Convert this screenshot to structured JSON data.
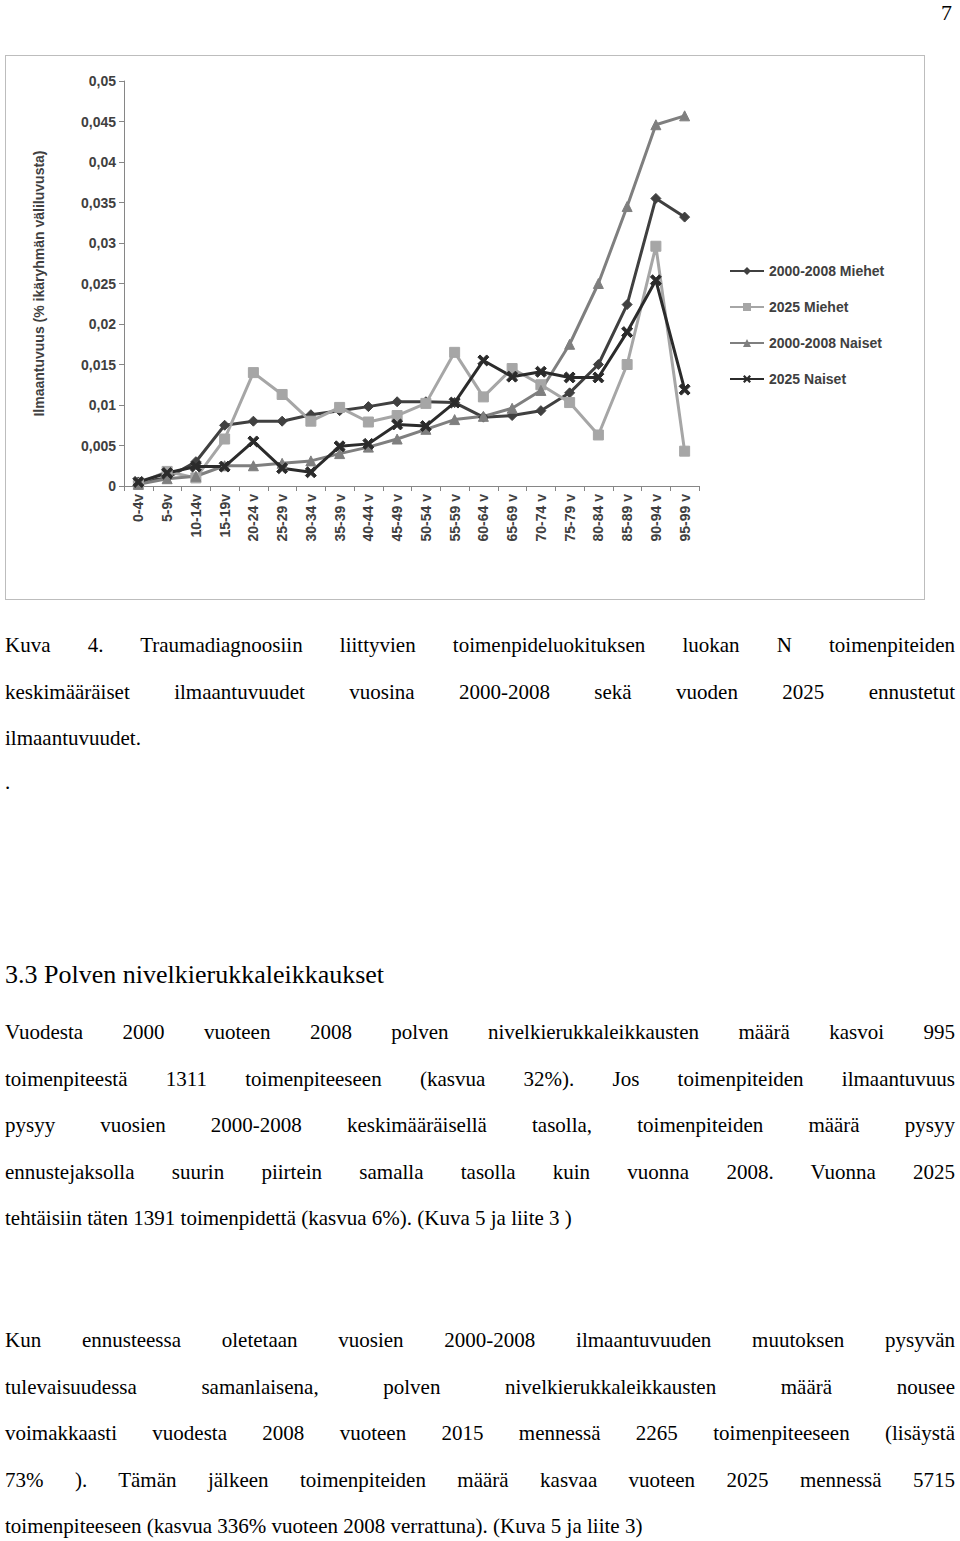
{
  "page_number": "7",
  "chart_data": {
    "type": "line",
    "y_label": "Ilmaantuvuus (% ikäryhmän väliluvusta)",
    "categories": [
      "0-4v",
      "5-9v",
      "10-14v",
      "15-19v",
      "20-24 v",
      "25-29 v",
      "30-34 v",
      "35-39 v",
      "40-44 v",
      "45-49 v",
      "50-54 v",
      "55-59 v",
      "60-64 v",
      "65-69 v",
      "70-74 v",
      "75-79 v",
      "80-84 v",
      "85-89 v",
      "90-94 v",
      "95-99 v"
    ],
    "series": [
      {
        "name": "2000-2008 Miehet",
        "color": "#404040",
        "marker": "diamond",
        "values": [
          0.0005,
          0.001,
          0.003,
          0.0075,
          0.008,
          0.008,
          0.0088,
          0.0093,
          0.0098,
          0.0104,
          0.0104,
          0.0103,
          0.0085,
          0.0087,
          0.0093,
          0.0115,
          0.015,
          0.0224,
          0.0355,
          0.0332
        ]
      },
      {
        "name": "2025 Miehet",
        "color": "#a6a6a6",
        "marker": "square",
        "values": [
          0.0003,
          0.0018,
          0.001,
          0.0058,
          0.014,
          0.0113,
          0.008,
          0.0097,
          0.0079,
          0.0087,
          0.0102,
          0.0165,
          0.011,
          0.0145,
          0.0125,
          0.0103,
          0.0063,
          0.015,
          0.0296,
          0.0043
        ]
      },
      {
        "name": "2000-2008 Naiset",
        "color": "#7f7f7f",
        "marker": "triangle",
        "values": [
          0.0002,
          0.0009,
          0.0012,
          0.0025,
          0.0025,
          0.0028,
          0.0031,
          0.004,
          0.0048,
          0.0058,
          0.007,
          0.0082,
          0.0086,
          0.0096,
          0.0118,
          0.0175,
          0.025,
          0.0345,
          0.0446,
          0.0457
        ]
      },
      {
        "name": "2025 Naiset",
        "color": "#2b2b2b",
        "marker": "x",
        "values": [
          0.0005,
          0.0016,
          0.0024,
          0.0024,
          0.0055,
          0.0022,
          0.0017,
          0.0049,
          0.0052,
          0.0076,
          0.0074,
          0.0103,
          0.0155,
          0.0135,
          0.0141,
          0.0134,
          0.0134,
          0.019,
          0.0254,
          0.0119
        ]
      }
    ],
    "ylim": [
      0,
      0.05
    ],
    "yticks": [
      0,
      {
        "value": 0.005,
        "label": "0,005"
      },
      {
        "value": 0.01,
        "label": "0,01"
      },
      {
        "value": 0.015,
        "label": "0,015"
      },
      {
        "value": 0.02,
        "label": "0,02"
      },
      {
        "value": 0.025,
        "label": "0,025"
      },
      {
        "value": 0.03,
        "label": "0,03"
      },
      {
        "value": 0.035,
        "label": "0,035"
      },
      {
        "value": 0.04,
        "label": "0,04"
      },
      {
        "value": 0.045,
        "label": "0,045"
      },
      {
        "value": 0.05,
        "label": "0,05"
      }
    ],
    "grid": false,
    "legend": "right"
  },
  "caption_lines": [
    "Kuva 4. Traumadiagnoosiin liittyvien toimenpideluokituksen luokan N toimenpiteiden",
    "keskimääräiset ilmaantuvuudet vuosina 2000-2008 sekä vuoden 2025 ennustetut",
    "ilmaantuvuudet."
  ],
  "separator": ".",
  "heading": "3.3 Polven nivelkierukkaleikkaukset",
  "paragraphs": [
    [
      "Vuodesta 2000 vuoteen 2008 polven nivelkierukkaleikkausten määrä kasvoi 995",
      "toimenpiteestä 1311 toimenpiteeseen (kasvua 32%). Jos toimenpiteiden ilmaantuvuus",
      "pysyy vuosien 2000-2008 keskimääräisellä tasolla, toimenpiteiden määrä pysyy",
      "ennustejaksolla suurin piirtein samalla tasolla kuin vuonna 2008. Vuonna 2025",
      "tehtäisiin täten 1391 toimenpidettä (kasvua 6%). (Kuva 5 ja liite 3 )"
    ],
    [
      "Kun ennusteessa oletetaan vuosien 2000-2008 ilmaantuvuuden muutoksen pysyvän",
      "tulevaisuudessa samanlaisena, polven nivelkierukkaleikkausten määrä nousee",
      "voimakkaasti vuodesta 2008 vuoteen 2015 mennessä 2265 toimenpiteeseen (lisäystä",
      "73% ). Tämän jälkeen toimenpiteiden määrä kasvaa vuoteen 2025 mennessä 5715",
      "toimenpiteeseen (kasvua 336% vuoteen 2008 verrattuna). (Kuva 5 ja liite 3)"
    ]
  ]
}
